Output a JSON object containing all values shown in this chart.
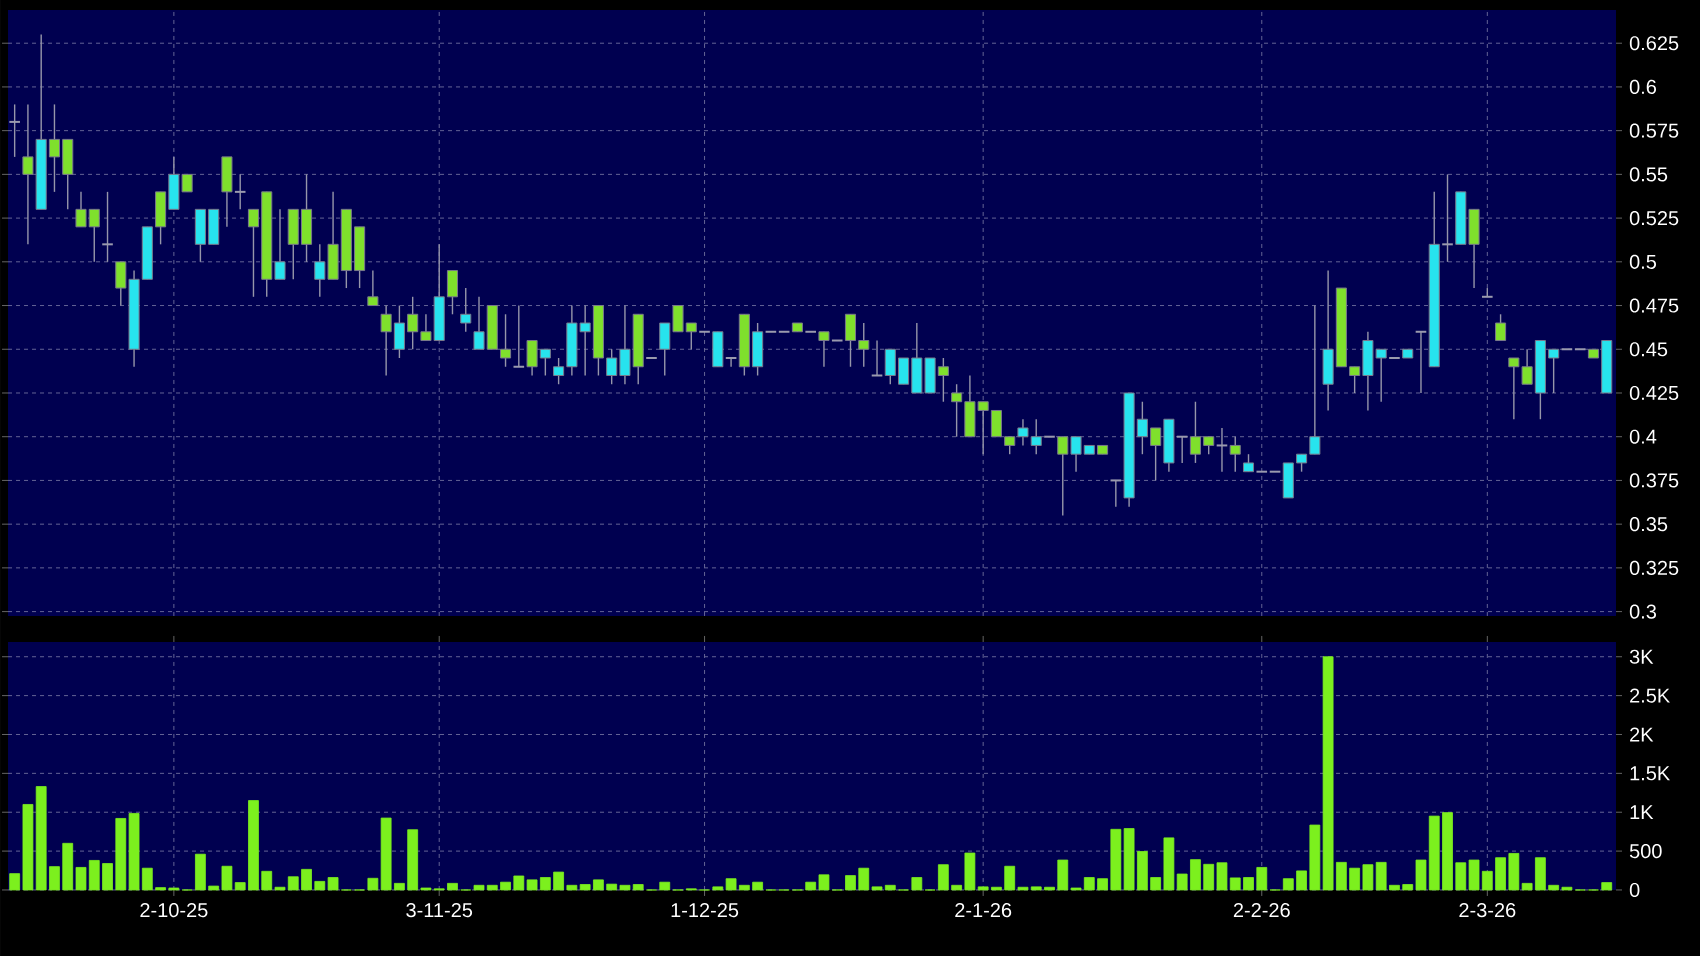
{
  "chart_data": [
    {
      "type": "candlestick",
      "categories": [
        null,
        null,
        null,
        null,
        null,
        null,
        null,
        null,
        null,
        null,
        null,
        null,
        null,
        null,
        null,
        null,
        null,
        null,
        null,
        null,
        null,
        null,
        null,
        null,
        null,
        null,
        null,
        null,
        null,
        null,
        null,
        null,
        null,
        null,
        null,
        null,
        null,
        null,
        null,
        null,
        null,
        null,
        null,
        null,
        null,
        null,
        null,
        null,
        null,
        null,
        null,
        null,
        null,
        null,
        null,
        null,
        null,
        null,
        null,
        null,
        null,
        null,
        null,
        null,
        null,
        null,
        null,
        null,
        null,
        null,
        null,
        null,
        null,
        null,
        null,
        null,
        null,
        null,
        null,
        null,
        null,
        null,
        null,
        null,
        null,
        null,
        null,
        null,
        null,
        null,
        null,
        null,
        null,
        null,
        null,
        null,
        null,
        null,
        null,
        null,
        null,
        null,
        null,
        null,
        null,
        null,
        null,
        null,
        null,
        null,
        null,
        null,
        null,
        null,
        null,
        null,
        null,
        null,
        null,
        null,
        null
      ],
      "ohlc": [
        [
          0.58,
          0.59,
          0.56,
          0.58
        ],
        [
          0.56,
          0.59,
          0.51,
          0.55
        ],
        [
          0.53,
          0.63,
          0.53,
          0.57
        ],
        [
          0.57,
          0.59,
          0.54,
          0.56
        ],
        [
          0.57,
          0.57,
          0.53,
          0.55
        ],
        [
          0.53,
          0.54,
          0.52,
          0.52
        ],
        [
          0.53,
          0.53,
          0.5,
          0.52
        ],
        [
          0.51,
          0.54,
          0.5,
          0.51
        ],
        [
          0.5,
          0.5,
          0.475,
          0.485
        ],
        [
          0.45,
          0.495,
          0.44,
          0.49
        ],
        [
          0.49,
          0.52,
          0.49,
          0.52
        ],
        [
          0.54,
          0.54,
          0.51,
          0.52
        ],
        [
          0.53,
          0.56,
          0.53,
          0.55
        ],
        [
          0.55,
          0.55,
          0.54,
          0.54
        ],
        [
          0.51,
          0.53,
          0.5,
          0.53
        ],
        [
          0.51,
          0.53,
          0.51,
          0.53
        ],
        [
          0.56,
          0.56,
          0.52,
          0.54
        ],
        [
          0.54,
          0.55,
          0.53,
          0.54
        ],
        [
          0.53,
          0.53,
          0.48,
          0.52
        ],
        [
          0.54,
          0.54,
          0.48,
          0.49
        ],
        [
          0.49,
          0.53,
          0.49,
          0.5
        ],
        [
          0.53,
          0.53,
          0.49,
          0.51
        ],
        [
          0.53,
          0.55,
          0.5,
          0.51
        ],
        [
          0.49,
          0.51,
          0.48,
          0.5
        ],
        [
          0.51,
          0.54,
          0.49,
          0.49
        ],
        [
          0.53,
          0.53,
          0.485,
          0.495
        ],
        [
          0.52,
          0.52,
          0.485,
          0.495
        ],
        [
          0.48,
          0.495,
          0.475,
          0.475
        ],
        [
          0.47,
          0.475,
          0.435,
          0.46
        ],
        [
          0.45,
          0.475,
          0.445,
          0.465
        ],
        [
          0.47,
          0.48,
          0.45,
          0.46
        ],
        [
          0.46,
          0.47,
          0.455,
          0.455
        ],
        [
          0.455,
          0.51,
          0.455,
          0.48
        ],
        [
          0.495,
          0.495,
          0.47,
          0.48
        ],
        [
          0.465,
          0.485,
          0.46,
          0.47
        ],
        [
          0.45,
          0.48,
          0.45,
          0.46
        ],
        [
          0.475,
          0.475,
          0.45,
          0.45
        ],
        [
          0.45,
          0.47,
          0.44,
          0.445
        ],
        [
          0.44,
          0.475,
          0.44,
          0.44
        ],
        [
          0.455,
          0.455,
          0.435,
          0.44
        ],
        [
          0.445,
          0.45,
          0.435,
          0.45
        ],
        [
          0.435,
          0.445,
          0.43,
          0.44
        ],
        [
          0.44,
          0.475,
          0.435,
          0.465
        ],
        [
          0.46,
          0.475,
          0.435,
          0.465
        ],
        [
          0.475,
          0.475,
          0.435,
          0.445
        ],
        [
          0.435,
          0.45,
          0.43,
          0.445
        ],
        [
          0.435,
          0.475,
          0.43,
          0.45
        ],
        [
          0.47,
          0.47,
          0.43,
          0.44
        ],
        [
          0.445,
          0.445,
          0.445,
          0.445
        ],
        [
          0.45,
          0.465,
          0.435,
          0.465
        ],
        [
          0.475,
          0.475,
          0.46,
          0.46
        ],
        [
          0.465,
          0.465,
          0.45,
          0.46
        ],
        [
          0.46,
          0.46,
          0.46,
          0.46
        ],
        [
          0.44,
          0.46,
          0.44,
          0.46
        ],
        [
          0.445,
          0.445,
          0.44,
          0.445
        ],
        [
          0.47,
          0.47,
          0.435,
          0.44
        ],
        [
          0.44,
          0.465,
          0.435,
          0.46
        ],
        [
          0.46,
          0.46,
          0.46,
          0.46
        ],
        [
          0.46,
          0.46,
          0.46,
          0.46
        ],
        [
          0.465,
          0.465,
          0.46,
          0.46
        ],
        [
          0.46,
          0.46,
          0.46,
          0.46
        ],
        [
          0.46,
          0.46,
          0.44,
          0.455
        ],
        [
          0.455,
          0.455,
          0.455,
          0.455
        ],
        [
          0.47,
          0.47,
          0.44,
          0.455
        ],
        [
          0.455,
          0.465,
          0.44,
          0.45
        ],
        [
          0.435,
          0.455,
          0.435,
          0.435
        ],
        [
          0.435,
          0.45,
          0.43,
          0.45
        ],
        [
          0.43,
          0.445,
          0.43,
          0.445
        ],
        [
          0.425,
          0.465,
          0.425,
          0.445
        ],
        [
          0.425,
          0.445,
          0.425,
          0.445
        ],
        [
          0.44,
          0.445,
          0.42,
          0.435
        ],
        [
          0.425,
          0.43,
          0.4,
          0.42
        ],
        [
          0.42,
          0.435,
          0.4,
          0.4
        ],
        [
          0.42,
          0.42,
          0.39,
          0.415
        ],
        [
          0.415,
          0.415,
          0.4,
          0.4
        ],
        [
          0.4,
          0.4,
          0.39,
          0.395
        ],
        [
          0.4,
          0.41,
          0.395,
          0.405
        ],
        [
          0.395,
          0.41,
          0.39,
          0.4
        ],
        [
          0.4,
          0.4,
          0.4,
          0.4
        ],
        [
          0.4,
          0.4,
          0.355,
          0.39
        ],
        [
          0.39,
          0.4,
          0.38,
          0.4
        ],
        [
          0.39,
          0.395,
          0.39,
          0.395
        ],
        [
          0.395,
          0.395,
          0.39,
          0.39
        ],
        [
          0.375,
          0.375,
          0.36,
          0.375
        ],
        [
          0.365,
          0.425,
          0.36,
          0.425
        ],
        [
          0.4,
          0.42,
          0.39,
          0.41
        ],
        [
          0.405,
          0.405,
          0.375,
          0.395
        ],
        [
          0.385,
          0.41,
          0.38,
          0.41
        ],
        [
          0.4,
          0.4,
          0.385,
          0.4
        ],
        [
          0.4,
          0.42,
          0.385,
          0.39
        ],
        [
          0.4,
          0.4,
          0.39,
          0.395
        ],
        [
          0.395,
          0.405,
          0.38,
          0.395
        ],
        [
          0.395,
          0.4,
          0.38,
          0.39
        ],
        [
          0.38,
          0.39,
          0.38,
          0.385
        ],
        [
          0.38,
          0.38,
          0.38,
          0.38
        ],
        [
          0.38,
          0.38,
          0.38,
          0.38
        ],
        [
          0.365,
          0.385,
          0.365,
          0.385
        ],
        [
          0.385,
          0.39,
          0.38,
          0.39
        ],
        [
          0.39,
          0.475,
          0.39,
          0.4
        ],
        [
          0.43,
          0.495,
          0.415,
          0.45
        ],
        [
          0.485,
          0.485,
          0.44,
          0.44
        ],
        [
          0.44,
          0.44,
          0.425,
          0.435
        ],
        [
          0.435,
          0.46,
          0.415,
          0.455
        ],
        [
          0.445,
          0.45,
          0.42,
          0.45
        ],
        [
          0.445,
          0.445,
          0.445,
          0.445
        ],
        [
          0.445,
          0.45,
          0.445,
          0.45
        ],
        [
          0.46,
          0.46,
          0.425,
          0.46
        ],
        [
          0.44,
          0.54,
          0.44,
          0.51
        ],
        [
          0.51,
          0.55,
          0.5,
          0.51
        ],
        [
          0.51,
          0.54,
          0.51,
          0.54
        ],
        [
          0.53,
          0.53,
          0.485,
          0.51
        ],
        [
          0.48,
          0.485,
          0.48,
          0.48
        ],
        [
          0.465,
          0.47,
          0.455,
          0.455
        ],
        [
          0.445,
          0.445,
          0.41,
          0.44
        ],
        [
          0.44,
          0.45,
          0.43,
          0.43
        ],
        [
          0.425,
          0.455,
          0.41,
          0.455
        ],
        [
          0.445,
          0.45,
          0.425,
          0.45
        ],
        [
          0.45,
          0.45,
          0.45,
          0.45
        ],
        [
          0.45,
          0.45,
          0.45,
          0.45
        ],
        [
          0.45,
          0.45,
          0.445,
          0.445
        ],
        [
          0.425,
          0.455,
          0.425,
          0.455
        ]
      ],
      "colors": [
        "#9a9aae",
        "#7fe02c",
        "#27e3ee",
        "#7fe02c",
        "#7fe02c",
        "#7fe02c",
        "#7fe02c",
        "#9a9aae",
        "#7fe02c",
        "#27e3ee",
        "#27e3ee",
        "#7fe02c",
        "#27e3ee",
        "#7fe02c",
        "#27e3ee",
        "#27e3ee",
        "#7fe02c",
        "#9a9aae",
        "#7fe02c",
        "#7fe02c",
        "#27e3ee",
        "#7fe02c",
        "#7fe02c",
        "#27e3ee",
        "#7fe02c",
        "#7fe02c",
        "#7fe02c",
        "#7fe02c",
        "#7fe02c",
        "#27e3ee",
        "#7fe02c",
        "#7fe02c",
        "#27e3ee",
        "#7fe02c",
        "#27e3ee",
        "#27e3ee",
        "#7fe02c",
        "#7fe02c",
        "#9a9aae",
        "#7fe02c",
        "#27e3ee",
        "#27e3ee",
        "#27e3ee",
        "#27e3ee",
        "#7fe02c",
        "#27e3ee",
        "#27e3ee",
        "#7fe02c",
        "#9a9aae",
        "#27e3ee",
        "#7fe02c",
        "#7fe02c",
        "#9a9aae",
        "#27e3ee",
        "#9a9aae",
        "#7fe02c",
        "#27e3ee",
        "#9a9aae",
        "#9a9aae",
        "#7fe02c",
        "#9a9aae",
        "#7fe02c",
        "#9a9aae",
        "#7fe02c",
        "#7fe02c",
        "#9a9aae",
        "#27e3ee",
        "#27e3ee",
        "#27e3ee",
        "#27e3ee",
        "#7fe02c",
        "#7fe02c",
        "#7fe02c",
        "#7fe02c",
        "#7fe02c",
        "#7fe02c",
        "#27e3ee",
        "#27e3ee",
        "#9a9aae",
        "#7fe02c",
        "#27e3ee",
        "#27e3ee",
        "#7fe02c",
        "#9a9aae",
        "#27e3ee",
        "#27e3ee",
        "#7fe02c",
        "#27e3ee",
        "#9a9aae",
        "#7fe02c",
        "#7fe02c",
        "#9a9aae",
        "#7fe02c",
        "#27e3ee",
        "#9a9aae",
        "#9a9aae",
        "#27e3ee",
        "#27e3ee",
        "#27e3ee",
        "#27e3ee",
        "#7fe02c",
        "#7fe02c",
        "#27e3ee",
        "#27e3ee",
        "#9a9aae",
        "#27e3ee",
        "#9a9aae",
        "#27e3ee",
        "#9a9aae",
        "#27e3ee",
        "#7fe02c",
        "#9a9aae",
        "#7fe02c",
        "#7fe02c",
        "#7fe02c",
        "#27e3ee",
        "#27e3ee",
        "#9a9aae",
        "#9a9aae",
        "#7fe02c",
        "#27e3ee"
      ],
      "ylim": [
        0.2975,
        0.644
      ],
      "yticks": [
        0.3,
        0.325,
        0.35,
        0.375,
        0.4,
        0.425,
        0.45,
        0.475,
        0.5,
        0.525,
        0.55,
        0.575,
        0.6,
        0.625
      ],
      "grid": true,
      "tick_labels": "y"
    },
    {
      "type": "bar",
      "categories": [
        null,
        null,
        null,
        null,
        null,
        null,
        null,
        null,
        null,
        null,
        null,
        null,
        "2-10-25",
        null,
        null,
        null,
        null,
        null,
        null,
        null,
        null,
        null,
        null,
        null,
        null,
        null,
        null,
        null,
        null,
        null,
        null,
        null,
        "3-11-25",
        null,
        null,
        null,
        null,
        null,
        null,
        null,
        null,
        null,
        null,
        null,
        null,
        null,
        null,
        null,
        null,
        null,
        null,
        null,
        "1-12-25",
        null,
        null,
        null,
        null,
        null,
        null,
        null,
        null,
        null,
        null,
        null,
        null,
        null,
        null,
        null,
        null,
        null,
        null,
        null,
        null,
        "2-1-26",
        null,
        null,
        null,
        null,
        null,
        null,
        null,
        null,
        null,
        null,
        null,
        null,
        null,
        null,
        null,
        null,
        null,
        null,
        null,
        null,
        "2-2-26",
        null,
        null,
        null,
        null,
        null,
        null,
        null,
        null,
        null,
        null,
        null,
        null,
        null,
        null,
        null,
        null,
        "2-3-26",
        null,
        null,
        null,
        null,
        null,
        null,
        null,
        null,
        null
      ],
      "values": [
        210,
        1100,
        1330,
        300,
        600,
        290,
        380,
        340,
        920,
        985,
        280,
        30,
        25,
        0,
        460,
        50,
        305,
        95,
        1150,
        240,
        35,
        170,
        265,
        110,
        160,
        0,
        0,
        150,
        925,
        85,
        775,
        25,
        15,
        85,
        0,
        60,
        60,
        100,
        180,
        130,
        160,
        230,
        60,
        70,
        130,
        75,
        60,
        70,
        0,
        100,
        0,
        15,
        0,
        40,
        145,
        60,
        100,
        0,
        0,
        0,
        100,
        195,
        0,
        185,
        280,
        40,
        60,
        0,
        160,
        0,
        325,
        60,
        475,
        40,
        35,
        305,
        35,
        40,
        35,
        385,
        25,
        160,
        145,
        780,
        790,
        495,
        160,
        670,
        205,
        390,
        330,
        350,
        155,
        160,
        290,
        0,
        145,
        245,
        835,
        3000,
        355,
        280,
        325,
        355,
        60,
        70,
        385,
        950,
        995,
        350,
        385,
        240,
        415,
        470,
        85,
        415,
        60,
        35,
        0,
        0,
        95
      ],
      "color": "#7cf01e",
      "ylim": [
        0,
        3190
      ],
      "yticks": [
        0,
        500,
        {
          "value": 1000,
          "label": "1K"
        },
        {
          "value": 1500,
          "label": "1.5K"
        },
        {
          "value": 2000,
          "label": "2K"
        },
        {
          "value": 2500,
          "label": "2.5K"
        },
        {
          "value": 3000,
          "label": "3K"
        }
      ],
      "grid": true
    }
  ]
}
